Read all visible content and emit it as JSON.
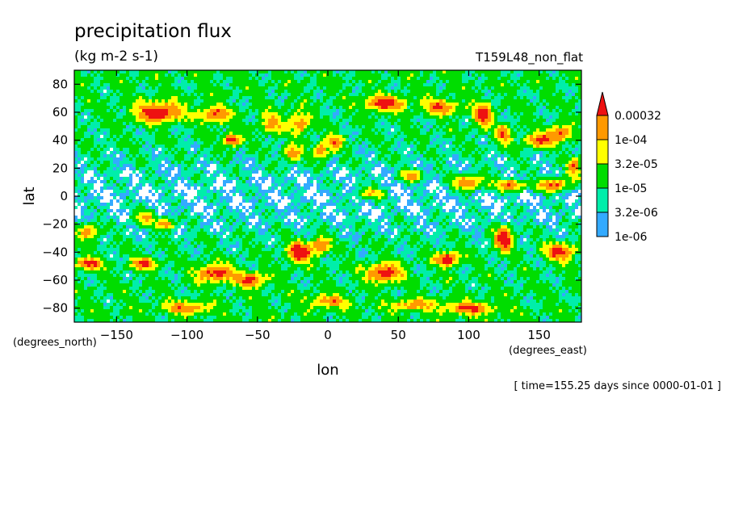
{
  "chart_data": {
    "type": "heatmap",
    "title": "precipitation flux",
    "units": "(kg m-2 s-1)",
    "run_label": "T159L48_non_flat",
    "xlabel": "lon",
    "ylabel": "lat",
    "x_units": "(degrees_east)",
    "y_units": "(degrees_north)",
    "xlim": [
      -180,
      180
    ],
    "ylim": [
      -90,
      90
    ],
    "x_ticks": [
      -150,
      -100,
      -50,
      0,
      50,
      100,
      150
    ],
    "y_ticks": [
      -80,
      -60,
      -40,
      -20,
      0,
      20,
      40,
      60,
      80
    ],
    "x_tick_labels": [
      "−150",
      "−100",
      "−50",
      "0",
      "50",
      "100",
      "150"
    ],
    "y_tick_labels": [
      "−80",
      "−60",
      "−40",
      "−20",
      "0",
      "20",
      "40",
      "60",
      "80"
    ],
    "time_note": "[ time=155.25 days since 0000-01-01 ]",
    "colorbar": {
      "levels": [
        "1e-06",
        "3.2e-06",
        "1e-05",
        "3.2e-05",
        "1e-04",
        "0.00032"
      ],
      "colors": [
        "#33aaff",
        "#00eeaa",
        "#00dd00",
        "#ffff00",
        "#ff9900",
        "#ee1111"
      ],
      "extend": "max"
    },
    "colors": {
      "none": "#ffffff",
      "c1": "#33aaff",
      "c2": "#00eeaa",
      "c3": "#00dd00",
      "c4": "#ffff00",
      "c5": "#ff9900",
      "c6": "#ee1111"
    }
  }
}
